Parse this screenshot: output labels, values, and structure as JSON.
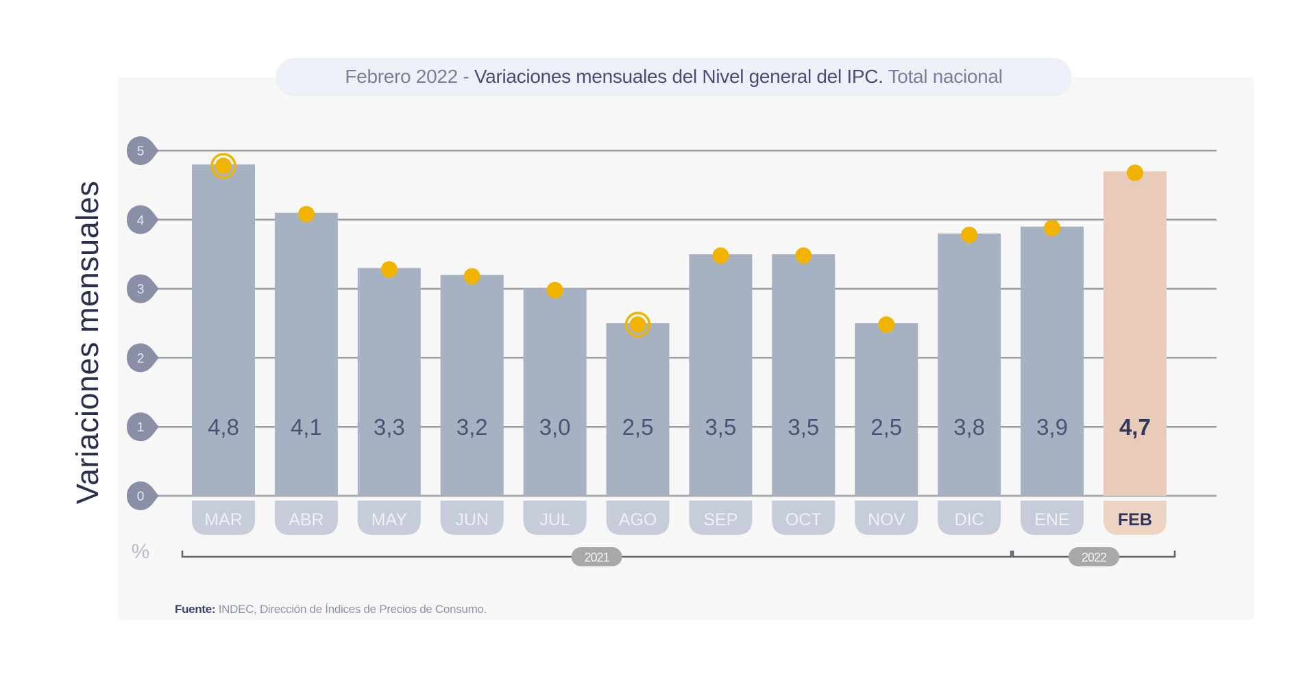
{
  "chart_data": {
    "type": "bar",
    "title": {
      "prefix": "Febrero 2022",
      "separator": " - ",
      "main": "Variaciones mensuales del Nivel general del IPC.",
      "suffix": " Total nacional"
    },
    "ylabel": "Variaciones mensuales",
    "yunit": "%",
    "ylim": [
      0,
      5
    ],
    "yticks": [
      "0",
      "1",
      "2",
      "3",
      "4",
      "5"
    ],
    "grid": true,
    "categories": [
      "MAR",
      "ABR",
      "MAY",
      "JUN",
      "JUL",
      "AGO",
      "SEP",
      "OCT",
      "NOV",
      "DIC",
      "ENE",
      "FEB"
    ],
    "values": [
      4.8,
      4.1,
      3.3,
      3.2,
      3.0,
      2.5,
      3.5,
      3.5,
      2.5,
      3.8,
      3.9,
      4.7
    ],
    "value_labels": [
      "4,8",
      "4,1",
      "3,3",
      "3,2",
      "3,0",
      "2,5",
      "3,5",
      "3,5",
      "2,5",
      "3,8",
      "3,9",
      "4,7"
    ],
    "highlighted_category": "FEB",
    "ringed_markers": [
      "MAR",
      "AGO"
    ],
    "year_groups": [
      {
        "label": "2021",
        "from": "MAR",
        "to": "DIC"
      },
      {
        "label": "2022",
        "from": "ENE",
        "to": "FEB"
      }
    ],
    "colors": {
      "bar": "#a6b1c2",
      "bar_highlight": "#e8cbb8",
      "month_pill": "#c6ccd9",
      "month_pill_highlight": "#edd3c2",
      "marker": "#f0b400",
      "grid": "#8a8c95",
      "tick_badge": "#8a8ea6",
      "value_text": "#4a5275",
      "value_text_highlight": "#2f355c",
      "year_pill": "#a8a8aa"
    }
  },
  "footer": {
    "source_label": "Fuente:",
    "source_text": " INDEC, Dirección de Índices de Precios de Consumo."
  }
}
